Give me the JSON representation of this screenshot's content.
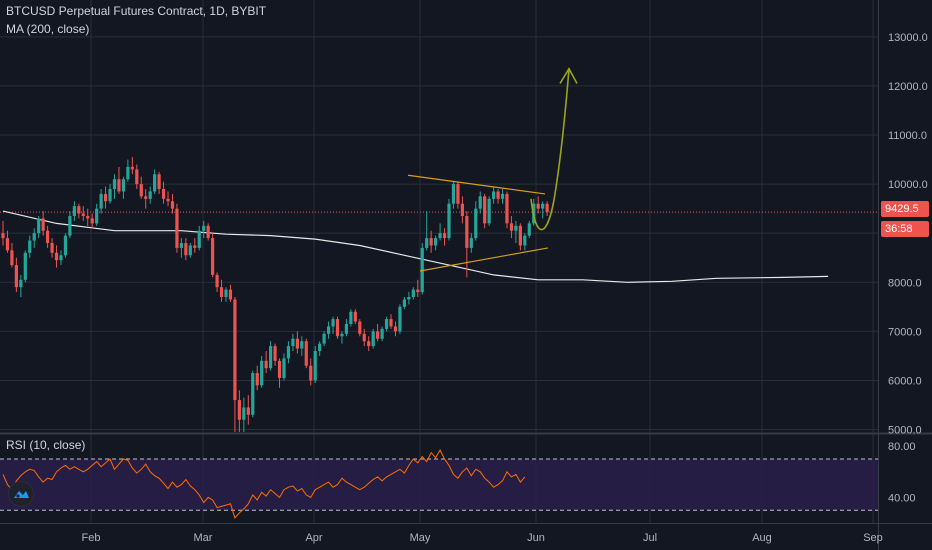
{
  "header": {
    "title": "BTCUSD Perpetual Futures Contract, 1D, BYBIT",
    "indicator": "MA (200, close)"
  },
  "rsi": {
    "label": "RSI (10, close)",
    "upper": 70,
    "lower": 30,
    "tick_labels": [
      "80.00",
      "40.00"
    ]
  },
  "price_badge": {
    "last_price": "9429.5",
    "countdown": "36:58"
  },
  "colors": {
    "background": "#131722",
    "grid": "#2a2e39",
    "up": "#26a69a",
    "down": "#ef5350",
    "ma": "#e8e8e8",
    "channel": "#d4a017",
    "arrow": "#9aa31a",
    "rsi_line": "#ff6d00",
    "rsi_band": "#2a1f4a"
  },
  "chart_data": [
    {
      "type": "candlestick",
      "title": "BTCUSD Perpetual Futures Contract, 1D, BYBIT",
      "x_axis_labels": [
        "Feb",
        "Mar",
        "Apr",
        "May",
        "Jun",
        "Jul",
        "Aug",
        "Sep"
      ],
      "y_ticks": [
        5000,
        6000,
        7000,
        8000,
        9000,
        10000,
        11000,
        12000,
        13000
      ],
      "y_tick_labels": [
        "5000.0",
        "6000.0",
        "7000.0",
        "8000.0",
        "9000.0",
        "10000.0",
        "11000.0",
        "12000.0",
        "13000.0"
      ],
      "ylim": [
        4950,
        13750
      ],
      "last_price": 9429.5,
      "ohlc": [
        [
          9000,
          9250,
          8750,
          8900
        ],
        [
          8900,
          9050,
          8600,
          8650
        ],
        [
          8650,
          8800,
          8300,
          8350
        ],
        [
          8350,
          8500,
          7800,
          7900
        ],
        [
          7900,
          8150,
          7700,
          8050
        ],
        [
          8050,
          8650,
          8000,
          8600
        ],
        [
          8600,
          8950,
          8500,
          8850
        ],
        [
          8850,
          9100,
          8700,
          9000
        ],
        [
          9000,
          9350,
          8900,
          9300
        ],
        [
          9300,
          9450,
          8950,
          9050
        ],
        [
          9050,
          9150,
          8700,
          8800
        ],
        [
          8800,
          8900,
          8500,
          8600
        ],
        [
          8600,
          8750,
          8300,
          8450
        ],
        [
          8450,
          8650,
          8350,
          8550
        ],
        [
          8550,
          9000,
          8500,
          8950
        ],
        [
          8950,
          9450,
          8900,
          9350
        ],
        [
          9350,
          9650,
          9250,
          9550
        ],
        [
          9550,
          9600,
          9300,
          9400
        ],
        [
          9400,
          9550,
          9250,
          9350
        ],
        [
          9350,
          9500,
          9150,
          9300
        ],
        [
          9300,
          9400,
          9100,
          9200
        ],
        [
          9200,
          9600,
          9150,
          9500
        ],
        [
          9500,
          9900,
          9400,
          9800
        ],
        [
          9800,
          9950,
          9500,
          9650
        ],
        [
          9650,
          10000,
          9600,
          9900
        ],
        [
          9900,
          10200,
          9700,
          10100
        ],
        [
          10100,
          10350,
          9800,
          9850
        ],
        [
          9850,
          10150,
          9700,
          10100
        ],
        [
          10100,
          10500,
          10050,
          10350
        ],
        [
          10350,
          10550,
          10200,
          10300
        ],
        [
          10300,
          10400,
          9900,
          10000
        ],
        [
          10000,
          10150,
          9700,
          9750
        ],
        [
          9750,
          9900,
          9500,
          9700
        ],
        [
          9700,
          9950,
          9600,
          9850
        ],
        [
          9850,
          10300,
          9800,
          10200
        ],
        [
          10200,
          10250,
          9800,
          9900
        ],
        [
          9900,
          10050,
          9600,
          9700
        ],
        [
          9700,
          9850,
          9550,
          9650
        ],
        [
          9650,
          9800,
          9400,
          9500
        ],
        [
          9500,
          9600,
          8600,
          8700
        ],
        [
          8700,
          8900,
          8500,
          8800
        ],
        [
          8800,
          8900,
          8450,
          8550
        ],
        [
          8550,
          8800,
          8500,
          8750
        ],
        [
          8750,
          8900,
          8600,
          8700
        ],
        [
          8700,
          9150,
          8650,
          9050
        ],
        [
          9050,
          9250,
          8900,
          9150
        ],
        [
          9150,
          9200,
          8850,
          8900
        ],
        [
          8900,
          9000,
          8100,
          8150
        ],
        [
          8150,
          8200,
          7800,
          7900
        ],
        [
          7900,
          8050,
          7600,
          7700
        ],
        [
          7700,
          7900,
          7600,
          7850
        ],
        [
          7850,
          7950,
          7600,
          7650
        ],
        [
          7650,
          7700,
          4950,
          5600
        ],
        [
          5600,
          5800,
          4950,
          5200
        ],
        [
          5200,
          5650,
          4950,
          5450
        ],
        [
          5450,
          5700,
          5100,
          5300
        ],
        [
          5300,
          6200,
          5250,
          6150
        ],
        [
          6150,
          6300,
          5800,
          5900
        ],
        [
          5900,
          6500,
          5850,
          6400
        ],
        [
          6400,
          6600,
          6150,
          6250
        ],
        [
          6250,
          6800,
          6200,
          6700
        ],
        [
          6700,
          6750,
          6300,
          6400
        ],
        [
          6400,
          6450,
          5850,
          6050
        ],
        [
          6050,
          6550,
          6000,
          6450
        ],
        [
          6450,
          6800,
          6350,
          6700
        ],
        [
          6700,
          6950,
          6600,
          6850
        ],
        [
          6850,
          7000,
          6550,
          6650
        ],
        [
          6650,
          6900,
          6500,
          6800
        ],
        [
          6800,
          6850,
          6250,
          6300
        ],
        [
          6300,
          6450,
          5900,
          6000
        ],
        [
          6000,
          6700,
          5950,
          6600
        ],
        [
          6600,
          6800,
          6500,
          6750
        ],
        [
          6750,
          7000,
          6700,
          6950
        ],
        [
          6950,
          7200,
          6850,
          7100
        ],
        [
          7100,
          7300,
          6950,
          7250
        ],
        [
          7250,
          7300,
          6850,
          6900
        ],
        [
          6900,
          7000,
          6750,
          6950
        ],
        [
          6950,
          7250,
          6900,
          7150
        ],
        [
          7150,
          7450,
          7100,
          7400
        ],
        [
          7400,
          7450,
          7150,
          7200
        ],
        [
          7200,
          7250,
          6900,
          6950
        ],
        [
          6950,
          7050,
          6700,
          6800
        ],
        [
          6800,
          6900,
          6600,
          6700
        ],
        [
          6700,
          7050,
          6650,
          7000
        ],
        [
          7000,
          7150,
          6800,
          6850
        ],
        [
          6850,
          7100,
          6800,
          7050
        ],
        [
          7050,
          7300,
          7000,
          7250
        ],
        [
          7250,
          7350,
          7050,
          7100
        ],
        [
          7100,
          7200,
          6900,
          7000
        ],
        [
          7000,
          7550,
          6950,
          7500
        ],
        [
          7500,
          7700,
          7450,
          7650
        ],
        [
          7650,
          7800,
          7550,
          7700
        ],
        [
          7700,
          7900,
          7650,
          7850
        ],
        [
          7850,
          8050,
          7700,
          7800
        ],
        [
          7800,
          8800,
          7750,
          8700
        ],
        [
          8700,
          9450,
          8650,
          8900
        ],
        [
          8900,
          9050,
          8600,
          8750
        ],
        [
          8750,
          8950,
          8650,
          8900
        ],
        [
          8900,
          9200,
          8850,
          9000
        ],
        [
          9000,
          9100,
          8750,
          8900
        ],
        [
          8900,
          9700,
          8850,
          9600
        ],
        [
          9600,
          10050,
          9500,
          10000
        ],
        [
          10000,
          10050,
          9500,
          9600
        ],
        [
          9600,
          9750,
          9200,
          9350
        ],
        [
          9350,
          9450,
          8100,
          8700
        ],
        [
          8700,
          9000,
          8600,
          8900
        ],
        [
          8900,
          9650,
          8850,
          9500
        ],
        [
          9500,
          9850,
          9400,
          9750
        ],
        [
          9750,
          9800,
          9100,
          9200
        ],
        [
          9200,
          9750,
          9150,
          9700
        ],
        [
          9700,
          9950,
          9600,
          9850
        ],
        [
          9850,
          9900,
          9600,
          9700
        ],
        [
          9700,
          9900,
          9600,
          9800
        ],
        [
          9800,
          9850,
          9100,
          9200
        ],
        [
          9200,
          9350,
          8900,
          9050
        ],
        [
          9050,
          9250,
          8800,
          9150
        ],
        [
          9150,
          9200,
          8650,
          8750
        ],
        [
          8750,
          9000,
          8650,
          8950
        ],
        [
          8950,
          9250,
          8900,
          9200
        ],
        [
          9200,
          9700,
          9150,
          9600
        ],
        [
          9600,
          9750,
          9400,
          9500
        ],
        [
          9500,
          9650,
          9300,
          9600
        ],
        [
          9600,
          9650,
          9350,
          9429.5
        ]
      ],
      "ma200": [
        [
          0,
          9450
        ],
        [
          12,
          9200
        ],
        [
          25,
          9050
        ],
        [
          40,
          9050
        ],
        [
          50,
          8980
        ],
        [
          60,
          8950
        ],
        [
          70,
          8880
        ],
        [
          80,
          8750
        ],
        [
          90,
          8550
        ],
        [
          100,
          8350
        ],
        [
          110,
          8150
        ],
        [
          120,
          8050
        ],
        [
          130,
          8050
        ],
        [
          140,
          8000
        ],
        [
          150,
          8020
        ],
        [
          160,
          8080
        ],
        [
          175,
          8100
        ],
        [
          185,
          8120
        ]
      ]
    },
    {
      "type": "line",
      "title": "RSI (10, close)",
      "ylim": [
        20,
        88
      ],
      "y_tick_labels": [
        "80.00",
        "40.00"
      ],
      "values": [
        58,
        50,
        46,
        53,
        57,
        60,
        62,
        61,
        56,
        52,
        55,
        54,
        60,
        63,
        65,
        62,
        64,
        62,
        60,
        62,
        65,
        68,
        64,
        67,
        70,
        62,
        66,
        70,
        69,
        63,
        59,
        62,
        66,
        60,
        57,
        55,
        51,
        47,
        52,
        48,
        50,
        54,
        49,
        46,
        42,
        36,
        40,
        38,
        32,
        33,
        34,
        35,
        24,
        28,
        31,
        35,
        42,
        38,
        44,
        41,
        46,
        43,
        40,
        46,
        48,
        49,
        45,
        47,
        42,
        40,
        46,
        48,
        50,
        52,
        48,
        50,
        55,
        52,
        50,
        48,
        46,
        48,
        51,
        54,
        56,
        53,
        56,
        58,
        60,
        62,
        59,
        65,
        70,
        67,
        72,
        68,
        75,
        71,
        77,
        70,
        65,
        58,
        55,
        60,
        63,
        57,
        62,
        60,
        55,
        52,
        48,
        50,
        53,
        60,
        56,
        58,
        52,
        56
      ],
      "series": [
        {
          "name": "RSI (10, close)"
        }
      ]
    }
  ]
}
